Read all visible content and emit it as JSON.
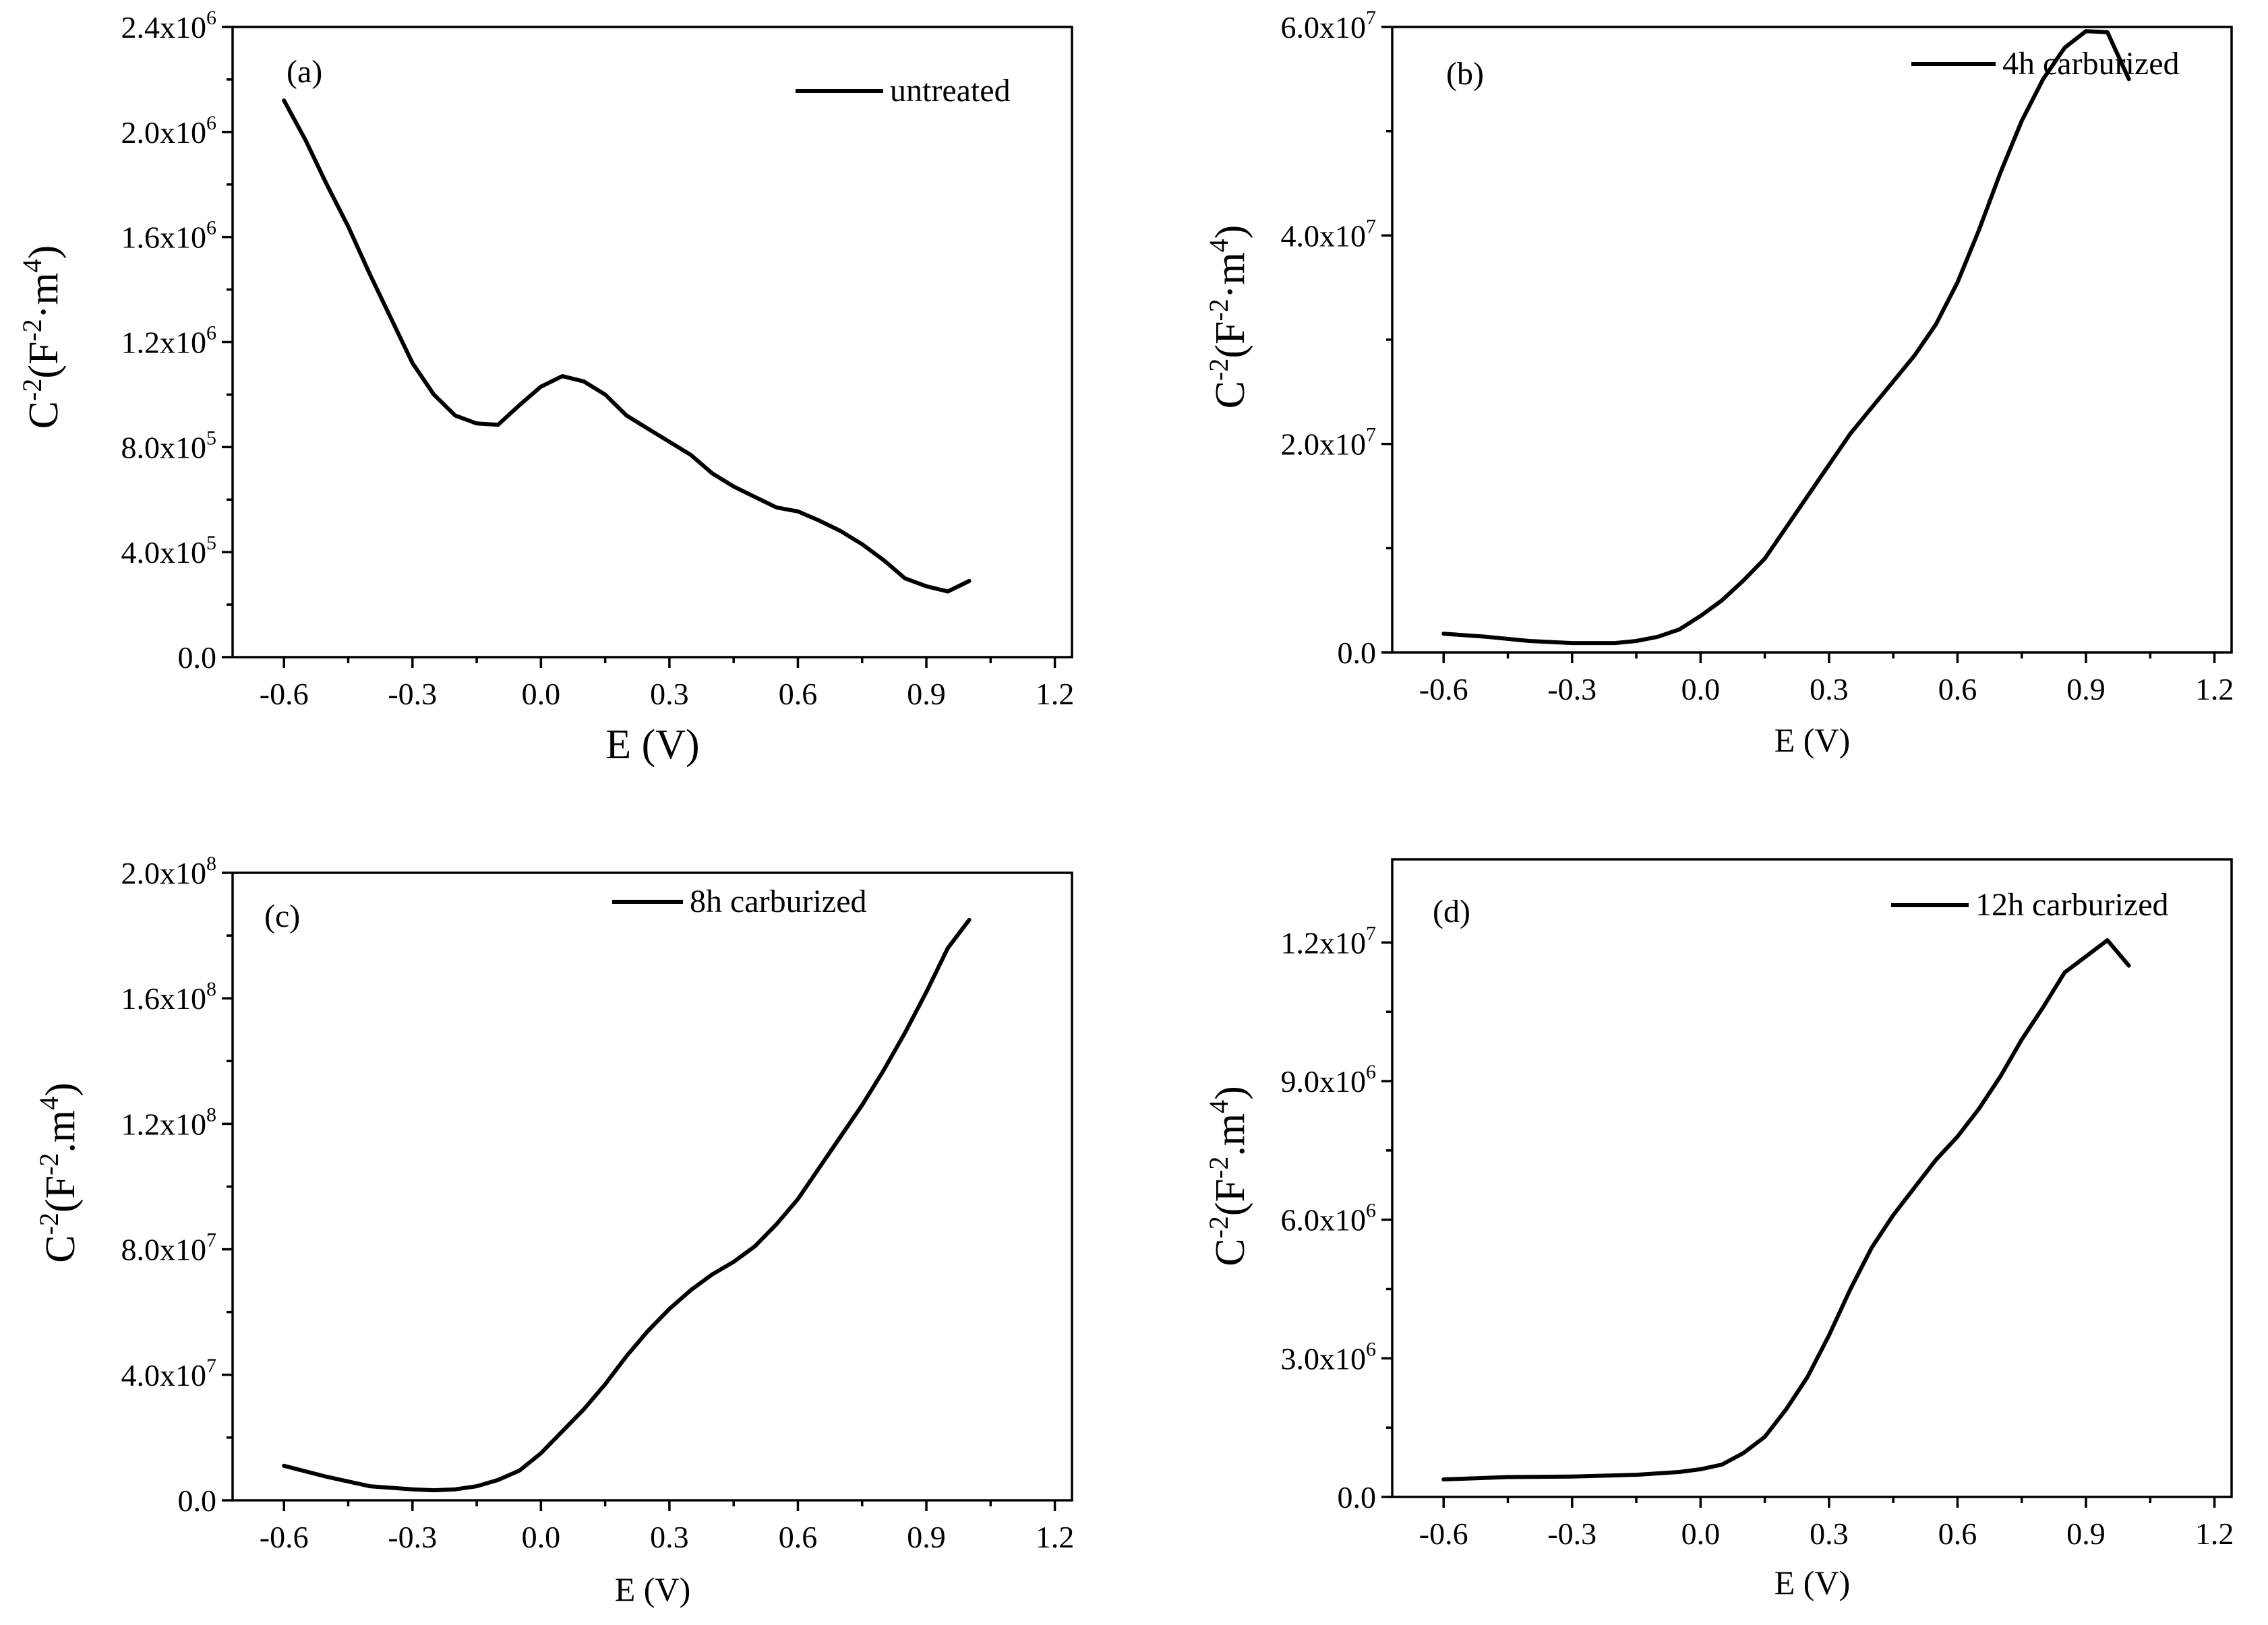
{
  "colors": {
    "line": "#000000",
    "background": "#ffffff"
  },
  "chart_data": [
    {
      "type": "line",
      "panel": "(a)",
      "legend": "untreated",
      "legend_position": "top-right",
      "xlabel": "E (V)",
      "ylabel": {
        "base": "C",
        "exp1": "-2",
        "unitA": "(F",
        "exp2": "-2",
        "unitB": "·m",
        "exp3": "4",
        "close": ")"
      },
      "xlim": [
        -0.72,
        1.24
      ],
      "ylim": [
        0,
        2400000.0
      ],
      "xticks": [
        -0.6,
        -0.3,
        0.0,
        0.3,
        0.6,
        0.9,
        1.2
      ],
      "xtick_labels": [
        "-0.6",
        "-0.3",
        "0.0",
        "0.3",
        "0.6",
        "0.9",
        "1.2"
      ],
      "yticks": [
        0,
        400000.0,
        800000.0,
        1200000.0,
        1600000.0,
        2000000.0,
        2400000.0
      ],
      "ytick_labels": [
        {
          "mant": "0.0",
          "exp": ""
        },
        {
          "mant": "4.0x10",
          "exp": "5"
        },
        {
          "mant": "8.0x10",
          "exp": "5"
        },
        {
          "mant": "1.2x10",
          "exp": "6"
        },
        {
          "mant": "1.6x10",
          "exp": "6"
        },
        {
          "mant": "2.0x10",
          "exp": "6"
        },
        {
          "mant": "2.4x10",
          "exp": "6"
        }
      ],
      "series": [
        {
          "name": "untreated",
          "x": [
            -0.6,
            -0.55,
            -0.5,
            -0.45,
            -0.4,
            -0.35,
            -0.3,
            -0.25,
            -0.2,
            -0.15,
            -0.1,
            -0.05,
            0.0,
            0.05,
            0.1,
            0.15,
            0.2,
            0.25,
            0.3,
            0.35,
            0.4,
            0.45,
            0.5,
            0.55,
            0.6,
            0.65,
            0.7,
            0.75,
            0.8,
            0.85,
            0.9,
            0.95,
            1.0
          ],
          "y": [
            2120000,
            1970000,
            1800000,
            1640000,
            1460000,
            1290000,
            1120000,
            1000000,
            920000,
            890000,
            885000,
            960000,
            1030000,
            1070000,
            1050000,
            1000000,
            920000,
            870000,
            820000,
            770000,
            700000,
            650000,
            610000,
            570000,
            555000,
            520000,
            480000,
            430000,
            370000,
            300000,
            270000,
            250000,
            290000
          ]
        }
      ]
    },
    {
      "type": "line",
      "panel": "(b)",
      "legend": "4h carburized",
      "legend_position": "top-right",
      "xlabel": "E (V)",
      "ylabel": {
        "base": "C",
        "exp1": "-2",
        "unitA": "(F",
        "exp2": "-2",
        "unitB": "·m",
        "exp3": "4",
        "close": ")"
      },
      "xlim": [
        -0.72,
        1.24
      ],
      "ylim": [
        0,
        60000000.0
      ],
      "xticks": [
        -0.6,
        -0.3,
        0.0,
        0.3,
        0.6,
        0.9,
        1.2
      ],
      "xtick_labels": [
        "-0.6",
        "-0.3",
        "0.0",
        "0.3",
        "0.6",
        "0.9",
        "1.2"
      ],
      "yticks": [
        0,
        20000000.0,
        40000000.0,
        60000000.0
      ],
      "ytick_labels": [
        {
          "mant": "0.0",
          "exp": ""
        },
        {
          "mant": "2.0x10",
          "exp": "7"
        },
        {
          "mant": "4.0x10",
          "exp": "7"
        },
        {
          "mant": "6.0x10",
          "exp": "7"
        }
      ],
      "series": [
        {
          "name": "4h carburized",
          "x": [
            -0.6,
            -0.5,
            -0.4,
            -0.3,
            -0.2,
            -0.15,
            -0.1,
            -0.05,
            0.0,
            0.05,
            0.1,
            0.15,
            0.2,
            0.25,
            0.3,
            0.35,
            0.4,
            0.45,
            0.5,
            0.55,
            0.6,
            0.65,
            0.7,
            0.75,
            0.8,
            0.85,
            0.9,
            0.95,
            1.0
          ],
          "y": [
            1800000,
            1500000,
            1100000,
            900000,
            900000,
            1100000,
            1500000,
            2200000,
            3500000,
            5000000,
            6900000,
            9000000,
            12000000,
            15000000,
            18000000,
            21000000,
            23500000,
            26000000,
            28500000,
            31500000,
            35500000,
            40500000,
            46000000,
            51000000,
            55000000,
            58000000,
            59600000,
            59500000,
            55000000
          ]
        }
      ]
    },
    {
      "type": "line",
      "panel": "(c)",
      "legend": "8h carburized",
      "legend_position": "top-right",
      "xlabel": "E (V)",
      "ylabel": {
        "base": "C",
        "exp1": "-2",
        "unitA": "(F",
        "exp2": "-2",
        "unitB": ".m",
        "exp3": "4",
        "close": ")"
      },
      "xlim": [
        -0.72,
        1.24
      ],
      "ylim": [
        0,
        200000000.0
      ],
      "xticks": [
        -0.6,
        -0.3,
        0.0,
        0.3,
        0.6,
        0.9,
        1.2
      ],
      "xtick_labels": [
        "-0.6",
        "-0.3",
        "0.0",
        "0.3",
        "0.6",
        "0.9",
        "1.2"
      ],
      "yticks": [
        0,
        40000000.0,
        80000000.0,
        120000000.0,
        160000000.0,
        200000000.0
      ],
      "ytick_labels": [
        {
          "mant": "0.0",
          "exp": ""
        },
        {
          "mant": "4.0x10",
          "exp": "7"
        },
        {
          "mant": "8.0x10",
          "exp": "7"
        },
        {
          "mant": "1.2x10",
          "exp": "8"
        },
        {
          "mant": "1.6x10",
          "exp": "8"
        },
        {
          "mant": "2.0x10",
          "exp": "8"
        }
      ],
      "series": [
        {
          "name": "8h carburized",
          "x": [
            -0.6,
            -0.5,
            -0.4,
            -0.3,
            -0.25,
            -0.2,
            -0.15,
            -0.1,
            -0.05,
            0.0,
            0.05,
            0.1,
            0.15,
            0.2,
            0.25,
            0.3,
            0.35,
            0.4,
            0.45,
            0.5,
            0.55,
            0.6,
            0.65,
            0.7,
            0.75,
            0.8,
            0.85,
            0.9,
            0.95,
            1.0
          ],
          "y": [
            11000000,
            7500000,
            4500000,
            3500000,
            3200000,
            3500000,
            4500000,
            6500000,
            9500000,
            15000000,
            22000000,
            29000000,
            37000000,
            46000000,
            54000000,
            61000000,
            67000000,
            72000000,
            76000000,
            81000000,
            88000000,
            96000000,
            106000000,
            116000000,
            126000000,
            137000000,
            149000000,
            162000000,
            176000000,
            185000000
          ]
        }
      ]
    },
    {
      "type": "line",
      "panel": "(d)",
      "legend": "12h carburized",
      "legend_position": "top-right",
      "xlabel": "E (V)",
      "ylabel": {
        "base": "C",
        "exp1": "-2",
        "unitA": "(F",
        "exp2": "-2",
        "unitB": ".m",
        "exp3": "4",
        "close": ")"
      },
      "xlim": [
        -0.72,
        1.24
      ],
      "ylim": [
        0,
        13800000.0
      ],
      "xticks": [
        -0.6,
        -0.3,
        0.0,
        0.3,
        0.6,
        0.9,
        1.2
      ],
      "xtick_labels": [
        "-0.6",
        "-0.3",
        "0.0",
        "0.3",
        "0.6",
        "0.9",
        "1.2"
      ],
      "yticks": [
        0,
        3000000.0,
        6000000.0,
        9000000.0,
        12000000.0
      ],
      "ytick_labels": [
        {
          "mant": "0.0",
          "exp": ""
        },
        {
          "mant": "3.0x10",
          "exp": "6"
        },
        {
          "mant": "6.0x10",
          "exp": "6"
        },
        {
          "mant": "9.0x10",
          "exp": "6"
        },
        {
          "mant": "1.2x10",
          "exp": "7"
        }
      ],
      "series": [
        {
          "name": "12h carburized",
          "x": [
            -0.6,
            -0.45,
            -0.3,
            -0.15,
            -0.05,
            0.0,
            0.05,
            0.1,
            0.15,
            0.2,
            0.25,
            0.3,
            0.35,
            0.4,
            0.45,
            0.5,
            0.55,
            0.6,
            0.65,
            0.7,
            0.75,
            0.8,
            0.85,
            0.9,
            0.95,
            1.0
          ],
          "y": [
            380000,
            430000,
            440000,
            480000,
            540000,
            600000,
            700000,
            950000,
            1300000,
            1900000,
            2600000,
            3500000,
            4500000,
            5400000,
            6100000,
            6700000,
            7300000,
            7800000,
            8400000,
            9100000,
            9900000,
            10600000,
            11350000,
            11700000,
            12050000,
            11500000
          ]
        }
      ]
    }
  ]
}
